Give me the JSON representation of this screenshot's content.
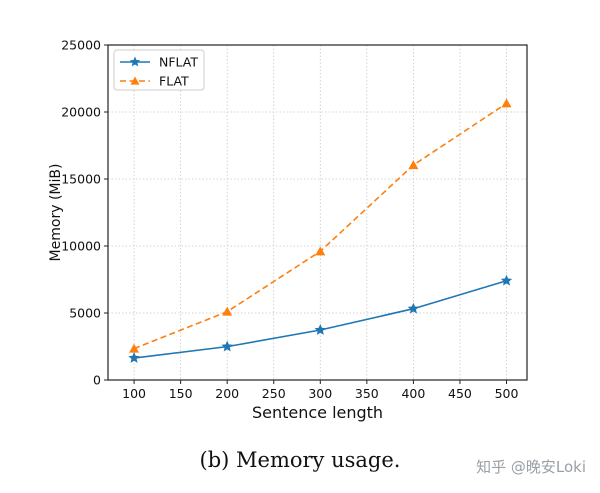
{
  "chart_data": {
    "type": "line",
    "xlabel": "Sentence length",
    "ylabel": "Memory (MiB)",
    "xlim": [
      72,
      522
    ],
    "ylim": [
      0,
      25000
    ],
    "xticks": [
      100,
      150,
      200,
      250,
      300,
      350,
      400,
      450,
      500
    ],
    "yticks": [
      0,
      5000,
      10000,
      15000,
      20000,
      25000
    ],
    "grid": true,
    "legend_position": "top-left",
    "x": [
      100,
      200,
      300,
      400,
      500
    ],
    "series": [
      {
        "name": "NFLAT",
        "values": [
          1640,
          2490,
          3730,
          5320,
          7410
        ],
        "color": "#1f77b4",
        "marker": "star",
        "linestyle": "solid"
      },
      {
        "name": "FLAT",
        "values": [
          2340,
          5100,
          9600,
          16040,
          20640
        ],
        "color": "#ff7f0e",
        "marker": "triangle",
        "linestyle": "dashed"
      }
    ]
  },
  "caption": "(b) Memory usage.",
  "watermark": "知乎 @晚安Loki"
}
